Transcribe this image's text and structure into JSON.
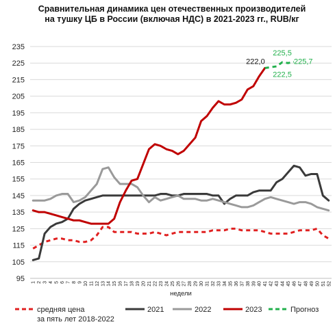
{
  "chart_data": {
    "type": "line",
    "title_lines": [
      "Сравнительная динамика цен отечественных производителей",
      "на тушку ЦБ в России (включая НДС) в 2021-2023 гг., RUB/кг"
    ],
    "xlabel": "недели",
    "ylabel": "",
    "ylim": [
      95,
      235
    ],
    "yticks": [
      95,
      105,
      115,
      125,
      135,
      145,
      155,
      165,
      175,
      185,
      195,
      205,
      215,
      225,
      235
    ],
    "x": [
      1,
      2,
      3,
      4,
      5,
      6,
      7,
      8,
      9,
      10,
      11,
      12,
      13,
      14,
      15,
      16,
      17,
      18,
      19,
      20,
      21,
      22,
      23,
      24,
      25,
      26,
      27,
      28,
      29,
      30,
      31,
      32,
      33,
      34,
      35,
      36,
      37,
      38,
      39,
      40,
      41,
      42,
      43,
      44,
      45,
      46,
      47,
      48,
      49,
      50,
      51,
      52
    ],
    "grid": "horizontal",
    "legend_position": "bottom",
    "series": [
      {
        "name": "средняя цена за пять лет 2018-2022",
        "legend_lines": [
          "средняя цена",
          "за пять лет 2018-2022"
        ],
        "color": "#e02020",
        "dash": "dashed",
        "values": [
          113,
          115,
          117,
          118,
          119,
          119,
          118,
          118,
          117,
          117,
          118,
          121,
          126,
          126,
          123,
          123,
          123,
          123,
          122,
          122,
          122,
          123,
          122,
          121,
          122,
          123,
          123,
          123,
          123,
          123,
          123,
          124,
          124,
          124,
          125,
          125,
          124,
          124,
          124,
          124,
          123,
          122,
          122,
          122,
          122,
          123,
          124,
          124,
          124,
          125,
          121,
          119
        ]
      },
      {
        "name": "2021",
        "legend_lines": [
          "2021"
        ],
        "color": "#3a3a3a",
        "dash": "solid",
        "values": [
          106,
          107,
          122,
          126,
          128,
          129,
          131,
          137,
          140,
          142,
          143,
          144,
          145,
          145,
          145,
          145,
          145,
          145,
          145,
          145,
          145,
          145,
          146,
          146,
          145,
          145,
          146,
          146,
          146,
          146,
          146,
          145,
          145,
          140,
          143,
          145,
          145,
          145,
          147,
          148,
          148,
          148,
          153,
          155,
          159,
          163,
          162,
          157,
          158,
          158,
          145,
          142
        ]
      },
      {
        "name": "2022",
        "legend_lines": [
          "2022"
        ],
        "color": "#9a9a9a",
        "dash": "solid",
        "values": [
          142,
          142,
          142,
          143,
          145,
          146,
          146,
          141,
          142,
          144,
          148,
          152,
          161,
          162,
          156,
          152,
          152,
          152,
          150,
          145,
          141,
          144,
          142,
          143,
          144,
          145,
          143,
          143,
          143,
          142,
          142,
          143,
          142,
          141,
          140,
          139,
          138,
          138,
          139,
          141,
          143,
          144,
          143,
          142,
          141,
          140,
          141,
          141,
          140,
          138,
          137,
          136
        ]
      },
      {
        "name": "2023",
        "legend_lines": [
          "2023"
        ],
        "color": "#c00000",
        "dash": "solid",
        "values": [
          136,
          135,
          135,
          134,
          133,
          132,
          131,
          130,
          130,
          129,
          128,
          128,
          128,
          128,
          131,
          141,
          148,
          154,
          155,
          164,
          173,
          176,
          175,
          173,
          172,
          170,
          172,
          176,
          180,
          190,
          193,
          198,
          202,
          200,
          200,
          201,
          203,
          209,
          211,
          217,
          222,
          null,
          null,
          null,
          null,
          null,
          null,
          null,
          null,
          null,
          null,
          null
        ]
      },
      {
        "name": "Прогноз",
        "legend_lines": [
          "Прогноз"
        ],
        "color": "#22b04c",
        "dash": "dashed",
        "values": [
          null,
          null,
          null,
          null,
          null,
          null,
          null,
          null,
          null,
          null,
          null,
          null,
          null,
          null,
          null,
          null,
          null,
          null,
          null,
          null,
          null,
          null,
          null,
          null,
          null,
          null,
          null,
          null,
          null,
          null,
          null,
          null,
          null,
          null,
          null,
          null,
          null,
          null,
          null,
          null,
          222,
          222.5,
          223,
          225.5,
          225,
          225.7,
          null,
          null,
          null,
          null,
          null,
          null
        ]
      }
    ],
    "annotations": [
      {
        "text": "222,0",
        "x": 41,
        "y": 222,
        "color": "#111111",
        "anchor": "end",
        "dy": -6
      },
      {
        "text": "225,5",
        "x": 44,
        "y": 225.5,
        "color": "#22b04c",
        "anchor": "middle",
        "dy": -10
      },
      {
        "text": "222,5",
        "x": 44,
        "y": 222.5,
        "color": "#22b04c",
        "anchor": "middle",
        "dy": 14
      },
      {
        "text": "225,7",
        "x": 46,
        "y": 225.7,
        "color": "#22b04c",
        "anchor": "start",
        "dy": 3
      }
    ]
  }
}
